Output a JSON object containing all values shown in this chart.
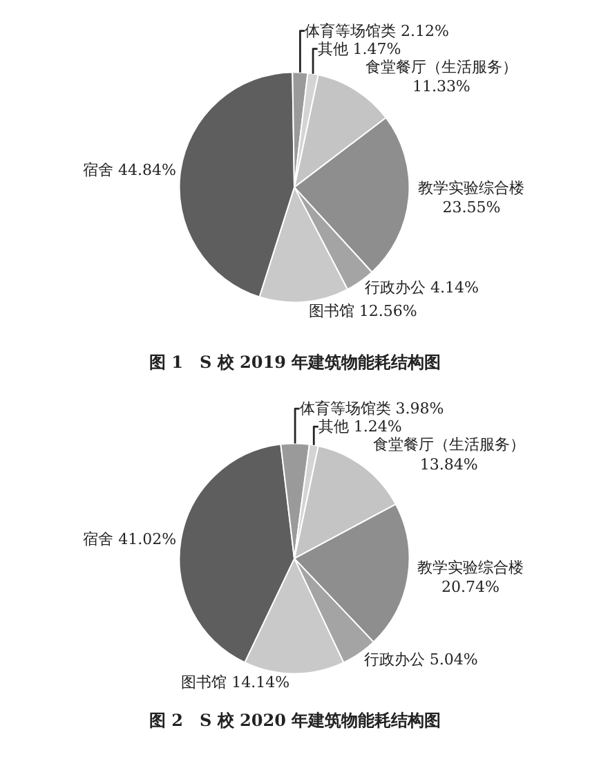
{
  "chart_data": [
    {
      "type": "pie",
      "title": "图 1　S 校 2019 年建筑物能耗结构图",
      "categories": [
        "食堂餐厅（生活服务）",
        "教学实验综合楼",
        "行政办公",
        "图书馆",
        "宿舍",
        "体育等场馆类",
        "其他"
      ],
      "values": [
        11.33,
        23.55,
        4.14,
        12.56,
        44.84,
        2.12,
        1.47
      ],
      "value_labels": [
        "11.33%",
        "23.55%",
        "4.14%",
        "12.56%",
        "44.84%",
        "2.12%",
        "1.47%"
      ],
      "colors": [
        "#c4c4c4",
        "#8e8e8e",
        "#a4a4a4",
        "#c9c9c9",
        "#5e5e5e",
        "#9a9a9a",
        "#d4d4d4"
      ]
    },
    {
      "type": "pie",
      "title": "图 2　S 校 2020 年建筑物能耗结构图",
      "categories": [
        "食堂餐厅（生活服务）",
        "教学实验综合楼",
        "行政办公",
        "图书馆",
        "宿舍",
        "体育等场馆类",
        "其他"
      ],
      "values": [
        13.84,
        20.74,
        5.04,
        14.14,
        41.02,
        3.98,
        1.24
      ],
      "value_labels": [
        "13.84%",
        "20.74%",
        "5.04%",
        "14.14%",
        "41.02%",
        "3.98%",
        "1.24%"
      ],
      "colors": [
        "#c4c4c4",
        "#8e8e8e",
        "#a4a4a4",
        "#c9c9c9",
        "#5e5e5e",
        "#9a9a9a",
        "#d4d4d4"
      ]
    }
  ]
}
